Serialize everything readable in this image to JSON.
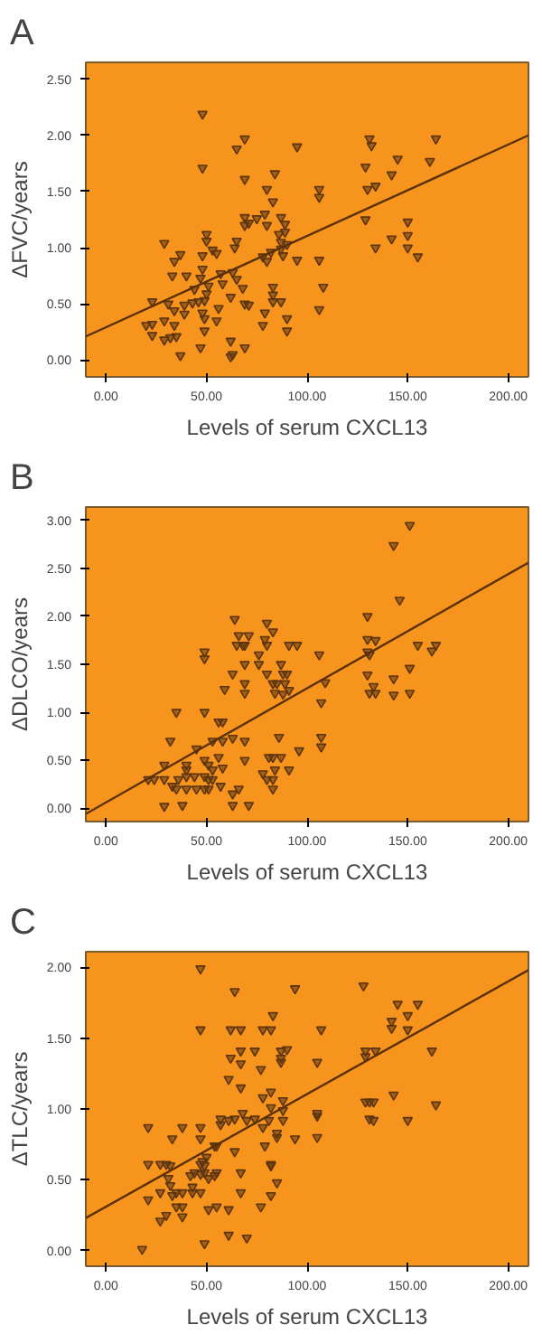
{
  "chart_data": [
    {
      "type": "scatter",
      "title": "A",
      "xlabel": "Levels of serum CXCL13",
      "ylabel": "ΔFVC/years",
      "xlim": [
        -10,
        210
      ],
      "ylim": [
        -0.15,
        2.65
      ],
      "xticks": [
        {
          "value": 0,
          "label": "0.00"
        },
        {
          "value": 50,
          "label": "50.00"
        },
        {
          "value": 100,
          "label": "100.00"
        },
        {
          "value": 150,
          "label": "150.00"
        },
        {
          "value": 200,
          "label": "200.00"
        }
      ],
      "yticks": [
        {
          "value": 0,
          "label": "0.00"
        },
        {
          "value": 0.5,
          "label": "0.50"
        },
        {
          "value": 1,
          "label": "1.00"
        },
        {
          "value": 1.5,
          "label": "1.50"
        },
        {
          "value": 2,
          "label": "2.00"
        },
        {
          "value": 2.5,
          "label": "2.50"
        }
      ],
      "grid": false,
      "series": [
        {
          "color": "#5c3410",
          "marker": "triangle",
          "x": [
            48,
            69,
            65,
            95,
            48,
            69,
            84,
            80,
            83,
            131,
            132,
            129,
            130,
            134,
            145,
            142,
            164,
            161,
            106,
            106,
            129,
            134,
            142,
            150,
            150,
            150,
            155,
            106,
            95,
            108,
            106,
            69,
            69,
            71,
            75,
            79,
            80,
            87,
            89,
            86,
            89,
            87,
            87,
            90,
            88,
            78,
            80,
            82,
            50,
            50,
            29,
            37,
            34,
            33,
            40,
            48,
            48,
            47,
            53,
            55,
            64,
            65,
            57,
            58,
            63,
            65,
            68,
            51,
            44,
            46,
            43,
            39,
            31,
            23,
            34,
            39,
            49,
            50,
            56,
            62,
            69,
            71,
            83,
            83,
            83,
            87,
            79,
            90,
            90,
            78,
            55,
            48,
            49,
            49,
            29,
            20,
            23,
            23,
            29,
            32,
            34,
            35,
            37,
            47,
            62,
            62,
            63,
            69
          ],
          "values": [
            2.19,
            1.97,
            1.88,
            1.9,
            1.71,
            1.61,
            1.66,
            1.52,
            1.41,
            1.97,
            1.91,
            1.72,
            1.52,
            1.55,
            1.79,
            1.65,
            1.97,
            1.77,
            1.52,
            1.45,
            1.25,
            1.0,
            1.08,
            1.23,
            1.11,
            1.0,
            0.92,
            0.89,
            0.89,
            0.65,
            0.45,
            1.27,
            1.2,
            1.22,
            1.26,
            1.3,
            1.2,
            1.27,
            1.21,
            1.12,
            1.14,
            1.05,
            0.99,
            1.03,
            0.93,
            0.92,
            0.88,
            0.96,
            1.12,
            1.06,
            1.04,
            0.94,
            0.88,
            0.75,
            0.75,
            0.93,
            0.81,
            0.73,
            0.98,
            0.95,
            1.0,
            1.06,
            0.77,
            0.68,
            0.78,
            0.72,
            0.64,
            0.66,
            0.63,
            0.52,
            0.51,
            0.49,
            0.5,
            0.52,
            0.44,
            0.41,
            0.53,
            0.59,
            0.46,
            0.56,
            0.5,
            0.49,
            0.52,
            0.58,
            0.65,
            0.52,
            0.42,
            0.37,
            0.26,
            0.31,
            0.35,
            0.42,
            0.37,
            0.26,
            0.35,
            0.31,
            0.32,
            0.22,
            0.18,
            0.2,
            0.31,
            0.21,
            0.04,
            0.11,
            0.17,
            0.03,
            0.05,
            0.11
          ]
        },
        {
          "type": "line",
          "color": "#5a3008",
          "x": [
            -10,
            210
          ],
          "values": [
            0.21,
            2.0
          ]
        }
      ]
    },
    {
      "type": "scatter",
      "title": "B",
      "xlabel": "Levels of serum CXCL13",
      "ylabel": "ΔDLCO/years",
      "xlim": [
        -10,
        210
      ],
      "ylim": [
        -0.14,
        3.14
      ],
      "xticks": [
        {
          "value": 0,
          "label": "0.00"
        },
        {
          "value": 50,
          "label": "50.00"
        },
        {
          "value": 100,
          "label": "100.00"
        },
        {
          "value": 150,
          "label": "150.00"
        },
        {
          "value": 200,
          "label": "200.00"
        }
      ],
      "yticks": [
        {
          "value": 0,
          "label": "0.00"
        },
        {
          "value": 0.5,
          "label": "0.50"
        },
        {
          "value": 1,
          "label": "1.00"
        },
        {
          "value": 1.5,
          "label": "1.50"
        },
        {
          "value": 2,
          "label": "2.00"
        },
        {
          "value": 2.5,
          "label": "2.50"
        },
        {
          "value": 3,
          "label": "3.00"
        }
      ],
      "grid": false,
      "series": [
        {
          "color": "#5c3410",
          "marker": "triangle",
          "x": [
            151,
            143,
            146,
            130,
            130,
            134,
            130,
            131,
            130,
            133,
            131,
            134,
            143,
            143,
            151,
            151,
            155,
            162,
            164,
            106,
            109,
            107,
            107,
            107,
            96,
            64,
            66,
            71,
            80,
            83,
            79,
            65,
            68,
            69,
            80,
            91,
            95,
            76,
            69,
            76,
            87,
            49,
            49,
            63,
            80,
            88,
            90,
            69,
            83,
            85,
            89,
            91,
            69,
            84,
            88,
            59,
            35,
            49,
            56,
            58,
            32,
            53,
            58,
            63,
            69,
            86,
            45,
            56,
            49,
            51,
            40,
            40,
            53,
            58,
            69,
            81,
            83,
            87,
            84,
            91,
            29,
            21,
            24,
            29,
            36,
            40,
            44,
            49,
            51,
            53,
            33,
            35,
            40,
            45,
            49,
            51,
            57,
            66,
            78,
            80,
            83,
            83,
            63,
            29,
            38,
            63,
            71
          ],
          "values": [
            2.95,
            2.74,
            2.17,
            2.0,
            1.76,
            1.75,
            1.63,
            1.6,
            1.39,
            1.27,
            1.2,
            1.2,
            1.35,
            1.18,
            1.46,
            1.2,
            1.7,
            1.64,
            1.7,
            1.6,
            1.31,
            1.1,
            0.74,
            0.64,
            0.6,
            1.97,
            1.8,
            1.8,
            1.93,
            1.84,
            1.76,
            1.7,
            1.7,
            1.7,
            1.7,
            1.7,
            1.7,
            1.6,
            1.5,
            1.5,
            1.5,
            1.63,
            1.56,
            1.4,
            1.4,
            1.4,
            1.4,
            1.3,
            1.3,
            1.3,
            1.3,
            1.23,
            1.2,
            1.2,
            1.19,
            1.24,
            1.0,
            1.0,
            0.9,
            0.9,
            0.7,
            0.7,
            0.7,
            0.73,
            0.7,
            0.74,
            0.62,
            0.53,
            0.5,
            0.45,
            0.45,
            0.4,
            0.4,
            0.42,
            0.5,
            0.53,
            0.53,
            0.53,
            0.4,
            0.4,
            0.45,
            0.3,
            0.3,
            0.3,
            0.3,
            0.33,
            0.33,
            0.33,
            0.3,
            0.3,
            0.23,
            0.2,
            0.2,
            0.2,
            0.2,
            0.2,
            0.23,
            0.2,
            0.36,
            0.3,
            0.3,
            0.2,
            0.15,
            0.02,
            0.03,
            0.03,
            0.03
          ]
        },
        {
          "type": "line",
          "color": "#5a3008",
          "x": [
            -10,
            210
          ],
          "values": [
            -0.06,
            2.56
          ]
        }
      ]
    },
    {
      "type": "scatter",
      "title": "C",
      "xlabel": "Levels of serum CXCL13",
      "ylabel": "ΔTLC/years",
      "xlim": [
        -10,
        210
      ],
      "ylim": [
        -0.11,
        2.11
      ],
      "xticks": [
        {
          "value": 0,
          "label": "0.00"
        },
        {
          "value": 50,
          "label": "50.00"
        },
        {
          "value": 100,
          "label": "100.00"
        },
        {
          "value": 150,
          "label": "150.00"
        },
        {
          "value": 200,
          "label": "200.00"
        }
      ],
      "yticks": [
        {
          "value": 0,
          "label": "0.00"
        },
        {
          "value": 0.5,
          "label": "0.50"
        },
        {
          "value": 1,
          "label": "1.00"
        },
        {
          "value": 1.5,
          "label": "1.50"
        },
        {
          "value": 2,
          "label": "2.00"
        }
      ],
      "grid": false,
      "series": [
        {
          "color": "#5c3410",
          "marker": "triangle",
          "x": [
            47,
            64,
            94,
            128,
            83,
            145,
            155,
            150,
            142,
            142,
            150,
            47,
            62,
            67,
            78,
            82,
            107,
            67,
            74,
            87,
            90,
            87,
            87,
            67,
            62,
            105,
            129,
            134,
            129,
            162,
            77,
            61,
            67,
            78,
            82,
            143,
            129,
            131,
            133,
            164,
            88,
            82,
            88,
            88,
            105,
            105,
            131,
            133,
            150,
            57,
            57,
            61,
            64,
            68,
            70,
            74,
            78,
            81,
            79,
            85,
            85,
            94,
            105,
            21,
            38,
            47,
            33,
            47,
            54,
            55,
            64,
            50,
            48,
            47,
            21,
            27,
            30,
            32,
            49,
            49,
            47,
            44,
            42,
            54,
            55,
            51,
            67,
            82,
            82,
            85,
            31,
            32,
            21,
            27,
            33,
            35,
            38,
            43,
            47,
            43,
            67,
            82,
            35,
            38,
            55,
            51,
            61,
            77,
            30,
            27,
            38,
            61,
            70,
            49,
            18
          ],
          "values": [
            1.99,
            1.83,
            1.85,
            1.87,
            1.66,
            1.74,
            1.74,
            1.66,
            1.62,
            1.57,
            1.56,
            1.56,
            1.56,
            1.56,
            1.56,
            1.56,
            1.56,
            1.41,
            1.41,
            1.41,
            1.42,
            1.36,
            1.33,
            1.32,
            1.36,
            1.33,
            1.41,
            1.41,
            1.37,
            1.41,
            1.28,
            1.21,
            1.15,
            1.08,
            1.12,
            1.1,
            1.05,
            1.05,
            1.05,
            1.03,
            1.06,
            1.01,
            0.99,
            0.92,
            0.97,
            0.95,
            0.93,
            0.92,
            0.92,
            0.93,
            0.89,
            0.92,
            0.93,
            0.97,
            0.92,
            0.93,
            0.87,
            0.92,
            0.74,
            0.83,
            0.8,
            0.79,
            0.8,
            0.87,
            0.87,
            0.87,
            0.79,
            0.79,
            0.74,
            0.74,
            0.7,
            0.66,
            0.63,
            0.61,
            0.61,
            0.61,
            0.61,
            0.6,
            0.6,
            0.55,
            0.54,
            0.55,
            0.53,
            0.53,
            0.55,
            0.51,
            0.55,
            0.61,
            0.6,
            0.48,
            0.51,
            0.46,
            0.36,
            0.41,
            0.39,
            0.41,
            0.41,
            0.41,
            0.41,
            0.45,
            0.41,
            0.39,
            0.31,
            0.31,
            0.31,
            0.29,
            0.29,
            0.31,
            0.25,
            0.21,
            0.24,
            0.11,
            0.09,
            0.05,
            0.01
          ]
        },
        {
          "type": "line",
          "color": "#5a3008",
          "x": [
            -10,
            210
          ],
          "values": [
            0.23,
            1.98
          ]
        }
      ]
    }
  ]
}
